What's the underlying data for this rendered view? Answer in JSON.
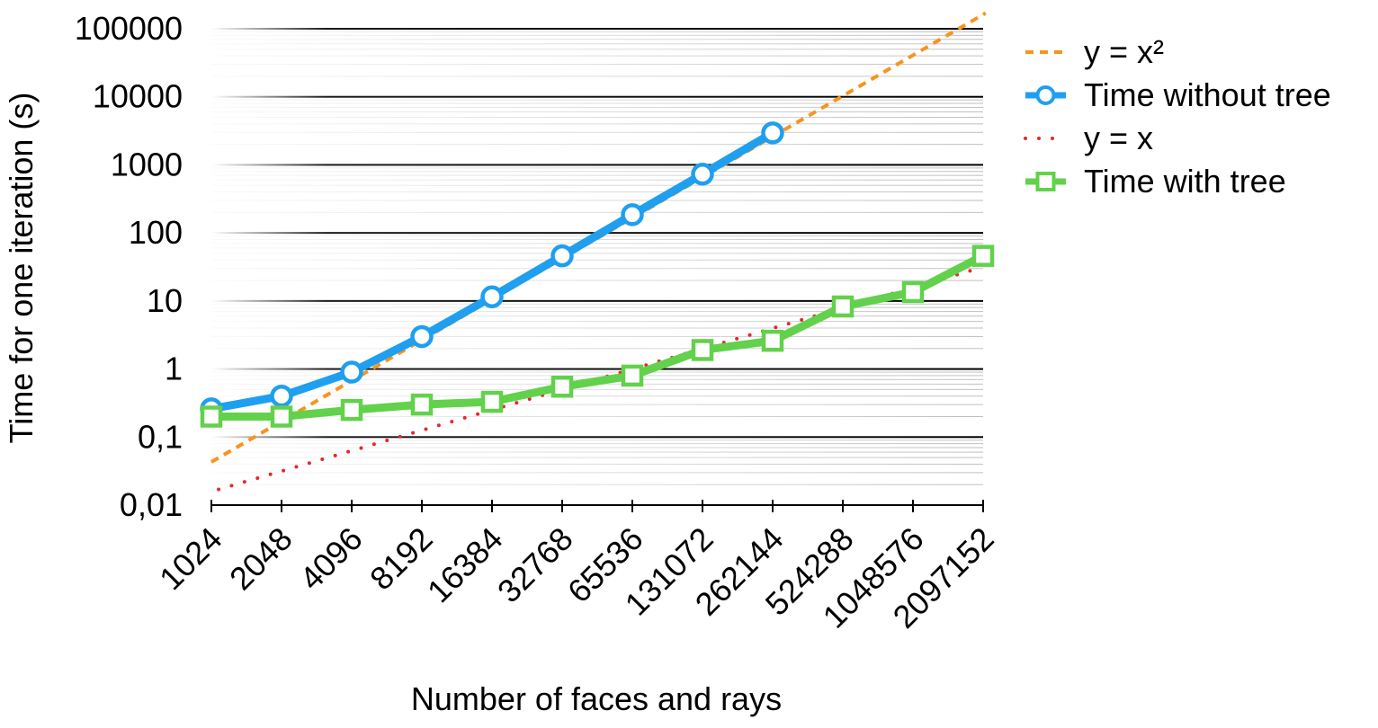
{
  "chart_data": {
    "type": "line",
    "title": "",
    "xlabel": "Number of faces and rays",
    "ylabel": "Time for one iteration (s)",
    "y_scale": "log",
    "ylim": [
      0.01,
      100000
    ],
    "grid": true,
    "legend_position": "right",
    "categories": [
      "1024",
      "2048",
      "4096",
      "8192",
      "16384",
      "32768",
      "65536",
      "131072",
      "262144",
      "524288",
      "1048576",
      "2097152"
    ],
    "y_tick_labels": [
      "0,01",
      "0,1",
      "1",
      "10",
      "100",
      "1000",
      "10000",
      "100000"
    ],
    "y_tick_values": [
      0.01,
      0.1,
      1,
      10,
      100,
      1000,
      10000,
      100000
    ],
    "series": [
      {
        "name": "y = x²",
        "style": "dashed",
        "color": "#f7941d",
        "marker": "none",
        "x": [
          1024,
          2150000
        ],
        "values": [
          0.043,
          170000
        ]
      },
      {
        "name": "Time without tree",
        "style": "solid",
        "color": "#1f9ff0",
        "marker": "circle",
        "x": [
          1024,
          2048,
          4096,
          8192,
          16384,
          32768,
          65536,
          131072,
          262144
        ],
        "values": [
          0.26,
          0.4,
          0.9,
          3,
          11.5,
          46,
          185,
          730,
          2950
        ]
      },
      {
        "name": "y = x",
        "style": "dotted",
        "color": "#e8262b",
        "marker": "none",
        "x": [
          1100,
          2000000
        ],
        "values": [
          0.017,
          30
        ]
      },
      {
        "name": "Time with tree",
        "style": "solid",
        "color": "#62d14b",
        "marker": "square",
        "x": [
          1024,
          2048,
          4096,
          8192,
          16384,
          32768,
          65536,
          131072,
          262144,
          524288,
          1048576,
          2097152
        ],
        "values": [
          0.2,
          0.2,
          0.25,
          0.3,
          0.33,
          0.55,
          0.8,
          1.9,
          2.6,
          8.3,
          13.5,
          46
        ]
      }
    ]
  }
}
